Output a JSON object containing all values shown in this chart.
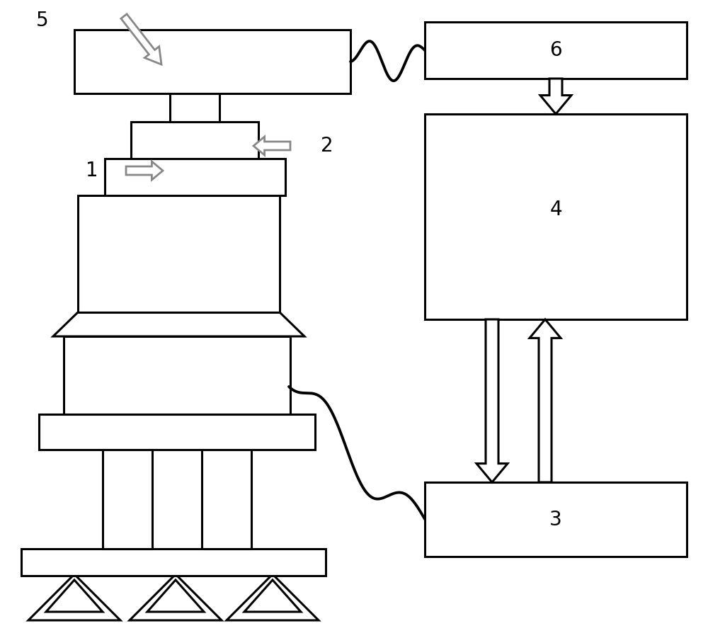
{
  "bg_color": "#ffffff",
  "line_color": "#000000",
  "line_width": 2.2,
  "gray": "#888888",
  "label_fontsize": 20,
  "fig_w": 10.0,
  "fig_h": 9.01
}
